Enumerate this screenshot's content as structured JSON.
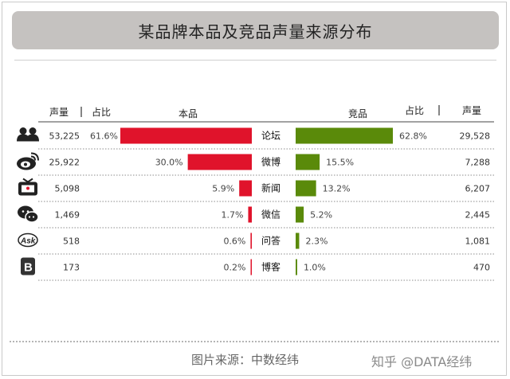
{
  "title": "某品牌本品及竞品声量来源分布",
  "footer": {
    "source": "图片来源：中数经纬",
    "watermark": "知乎 @DATA经纬"
  },
  "headers": {
    "left_volume": "声量",
    "left_share": "占比",
    "left_brand": "本品",
    "right_brand": "竞品",
    "right_share": "占比",
    "right_volume": "声量"
  },
  "colors": {
    "own": "#e0132b",
    "competitor": "#5a8a0a"
  },
  "chart_data": {
    "type": "bar",
    "categories": [
      "论坛",
      "微博",
      "新闻",
      "微信",
      "问答",
      "博客"
    ],
    "icons": [
      "users-icon",
      "weibo-icon",
      "tv-icon",
      "wechat-icon",
      "ask-icon",
      "blog-icon"
    ],
    "series": [
      {
        "name": "本品",
        "share_labels": [
          "61.6%",
          "30.0%",
          "5.9%",
          "1.7%",
          "0.6%",
          "0.2%"
        ],
        "values": [
          61.6,
          30.0,
          5.9,
          1.7,
          0.6,
          0.2
        ],
        "volume_labels": [
          "53,225",
          "25,922",
          "5,098",
          "1,469",
          "518",
          "173"
        ]
      },
      {
        "name": "竞品",
        "share_labels": [
          "62.8%",
          "15.5%",
          "13.2%",
          "5.2%",
          "2.3%",
          "1.0%"
        ],
        "values": [
          62.8,
          15.5,
          13.2,
          5.2,
          2.3,
          1.0
        ],
        "volume_labels": [
          "29,528",
          "7,288",
          "6,207",
          "2,445",
          "1,081",
          "470"
        ]
      }
    ]
  }
}
